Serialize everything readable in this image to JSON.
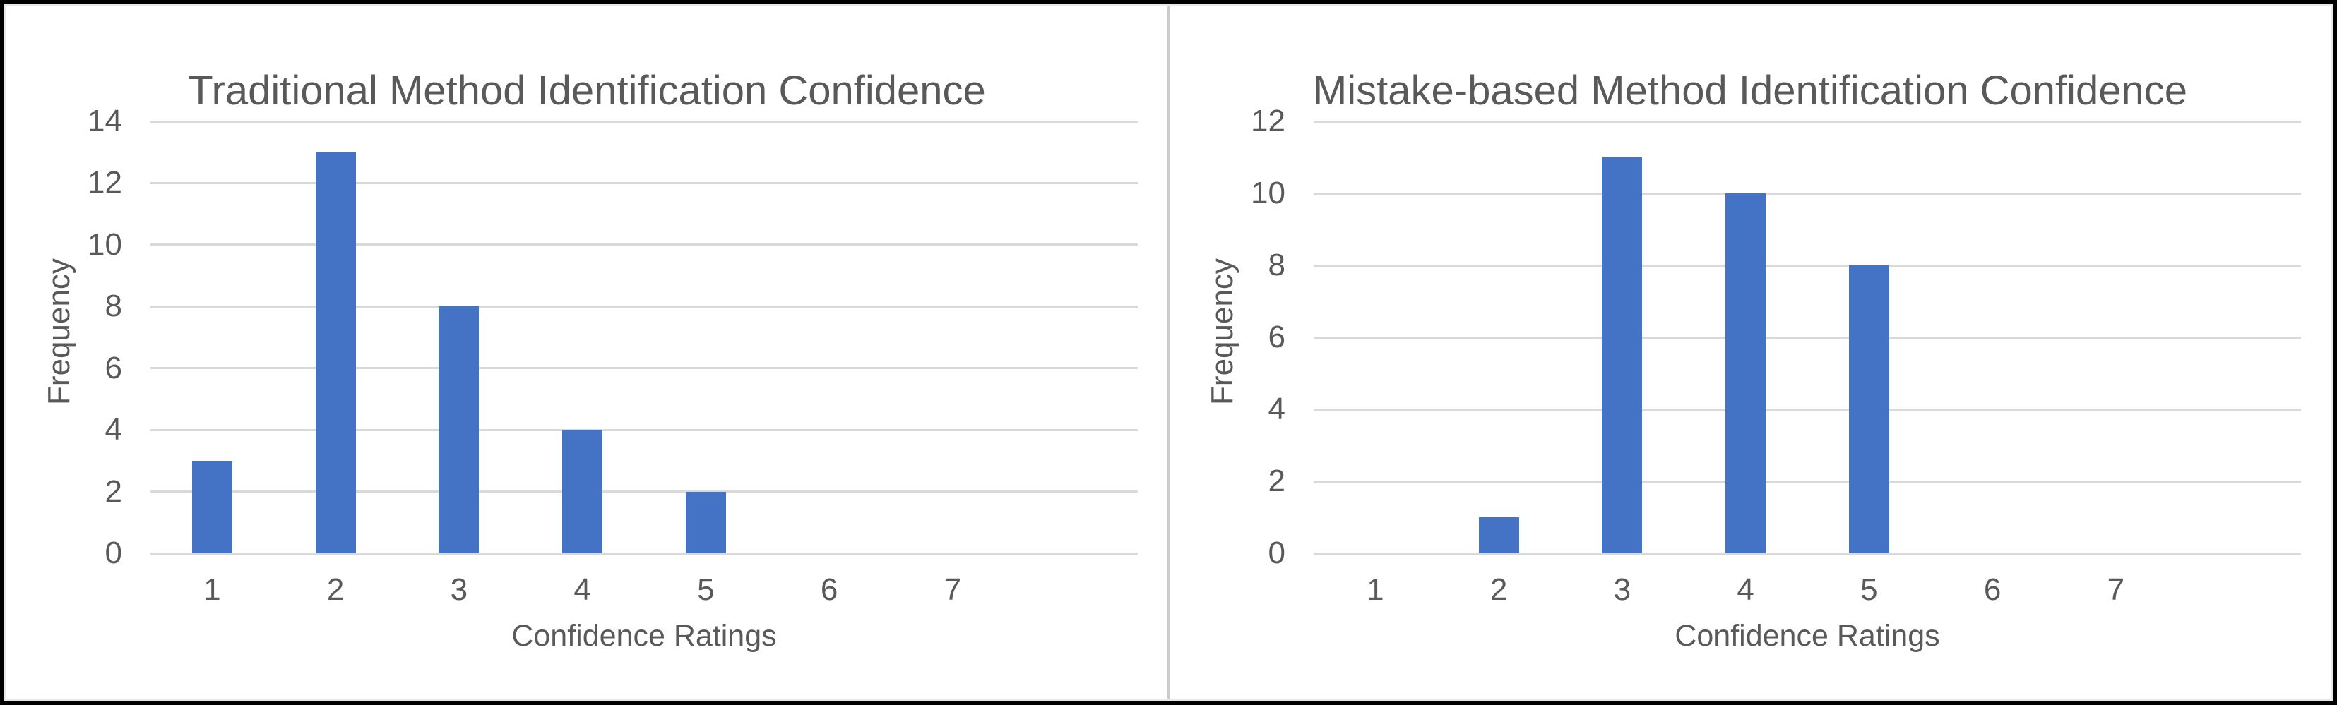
{
  "window": {
    "background": "#ffffff",
    "border_color": "#000000",
    "inset_color": "#e9e9e9",
    "divider_color": "#cccccc"
  },
  "chart_data": [
    {
      "type": "bar",
      "title": "Traditional Method Identification Confidence",
      "categories": [
        "1",
        "2",
        "3",
        "4",
        "5",
        "6",
        "7"
      ],
      "values": [
        3,
        13,
        8,
        4,
        2,
        0,
        0
      ],
      "xlabel": "Confidence Ratings",
      "ylabel": "Frequency",
      "ylim": [
        0,
        14
      ],
      "yticks": [
        0,
        2,
        4,
        6,
        8,
        10,
        12,
        14
      ],
      "grid": true,
      "legend_position": "none",
      "extra_right_category_slots": 1,
      "bar_color": "#4472C4",
      "gridline_color": "#D9D9D9",
      "text_color": "#595959"
    },
    {
      "type": "bar",
      "title": "Mistake-based Method Identification Confidence",
      "categories": [
        "1",
        "2",
        "3",
        "4",
        "5",
        "6",
        "7"
      ],
      "values": [
        0,
        1,
        11,
        10,
        8,
        0,
        0
      ],
      "xlabel": "Confidence Ratings",
      "ylabel": "Frequency",
      "ylim": [
        0,
        12
      ],
      "yticks": [
        0,
        2,
        4,
        6,
        8,
        10,
        12
      ],
      "grid": true,
      "legend_position": "none",
      "extra_right_category_slots": 1,
      "bar_color": "#4472C4",
      "gridline_color": "#D9D9D9",
      "text_color": "#595959"
    }
  ]
}
